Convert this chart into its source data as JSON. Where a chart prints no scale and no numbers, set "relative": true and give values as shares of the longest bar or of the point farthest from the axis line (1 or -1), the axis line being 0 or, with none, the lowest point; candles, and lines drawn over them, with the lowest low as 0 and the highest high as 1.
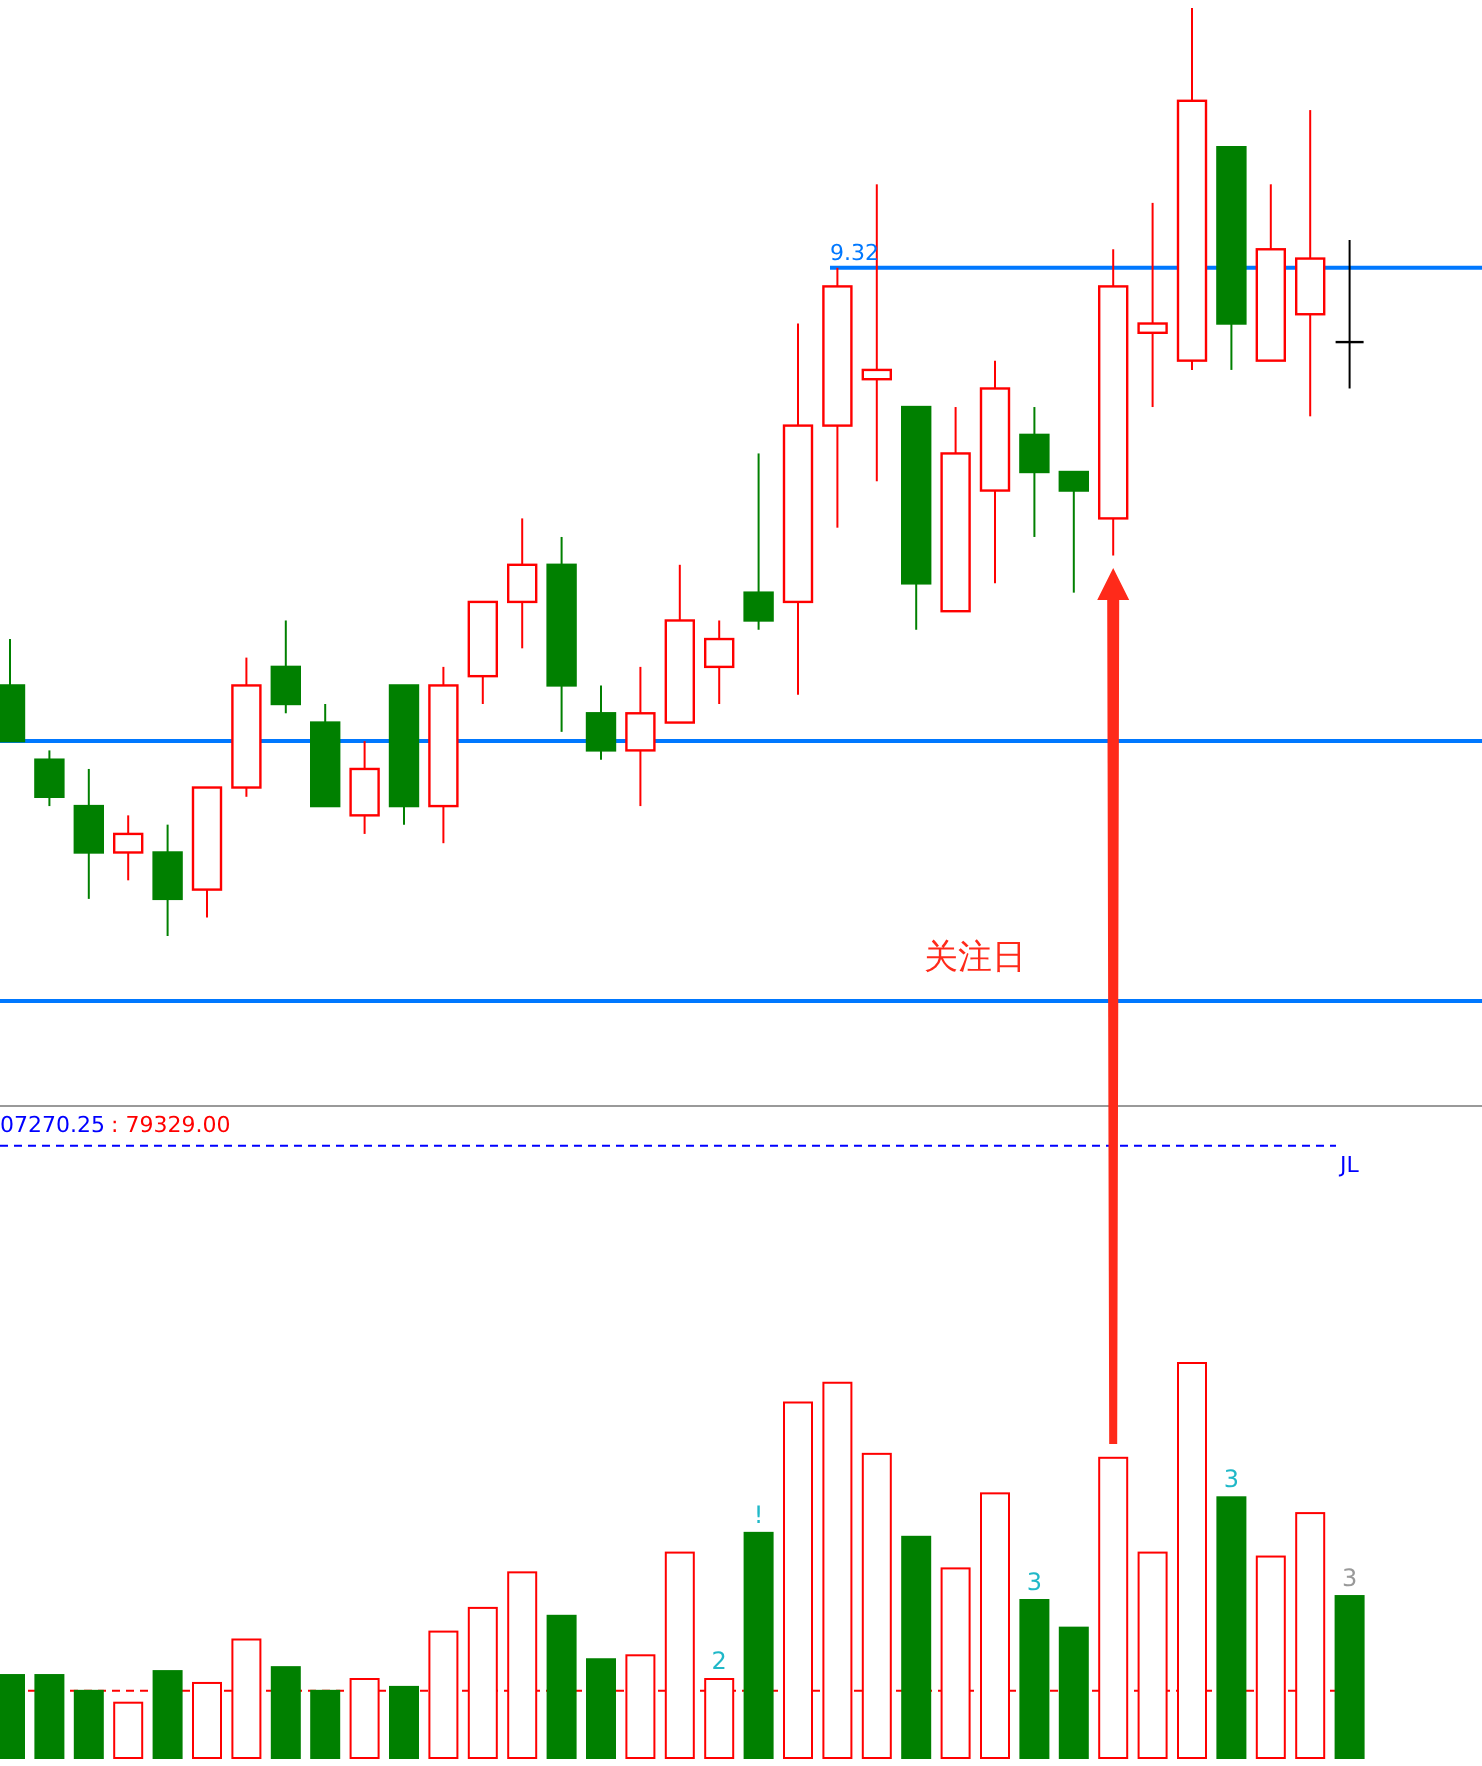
{
  "chart_data": [
    {
      "type": "candlestick",
      "relative": true,
      "categories": [
        null,
        null,
        null,
        null,
        null,
        null,
        null,
        null,
        null,
        null,
        null,
        null,
        null,
        null,
        null,
        null,
        null,
        null,
        null,
        null,
        null,
        null,
        null,
        null,
        null,
        null,
        null,
        null,
        null,
        null,
        null,
        null,
        null,
        null,
        null
      ],
      "ohlc": [
        [
          0.27,
          0.32,
          0.21,
          0.21
        ],
        [
          0.19,
          0.2,
          0.14,
          0.15
        ],
        [
          0.14,
          0.18,
          0.04,
          0.09
        ],
        [
          0.09,
          0.13,
          0.06,
          0.11
        ],
        [
          0.09,
          0.12,
          0,
          0.04
        ],
        [
          0.05,
          0.16,
          0.02,
          0.16
        ],
        [
          0.16,
          0.3,
          0.15,
          0.27
        ],
        [
          0.29,
          0.34,
          0.24,
          0.25
        ],
        [
          0.23,
          0.25,
          0.14,
          0.14
        ],
        [
          0.13,
          0.21,
          0.11,
          0.18
        ],
        [
          0.27,
          0.27,
          0.12,
          0.14
        ],
        [
          0.14,
          0.29,
          0.1,
          0.27
        ],
        [
          0.28,
          0.36,
          0.25,
          0.36
        ],
        [
          0.36,
          0.45,
          0.31,
          0.4
        ],
        [
          0.4,
          0.43,
          0.22,
          0.27
        ],
        [
          0.24,
          0.27,
          0.19,
          0.2
        ],
        [
          0.2,
          0.29,
          0.14,
          0.24
        ],
        [
          0.23,
          0.4,
          0.23,
          0.34
        ],
        [
          0.29,
          0.34,
          0.25,
          0.32
        ],
        [
          0.37,
          0.52,
          0.33,
          0.34
        ],
        [
          0.36,
          0.66,
          0.26,
          0.55
        ],
        [
          0.55,
          0.72,
          0.44,
          0.7
        ],
        [
          0.6,
          0.81,
          0.49,
          0.61
        ],
        [
          0.57,
          0.57,
          0.33,
          0.38
        ],
        [
          0.35,
          0.57,
          0.35,
          0.52
        ],
        [
          0.48,
          0.62,
          0.38,
          0.59
        ],
        [
          0.54,
          0.57,
          0.43,
          0.5
        ],
        [
          0.5,
          0.5,
          0.37,
          0.48
        ],
        [
          0.45,
          0.74,
          0.41,
          0.7
        ],
        [
          0.65,
          0.79,
          0.57,
          0.66
        ],
        [
          0.62,
          1.0,
          0.61,
          0.9
        ],
        [
          0.85,
          0.85,
          0.61,
          0.66
        ],
        [
          0.62,
          0.81,
          0.62,
          0.74
        ],
        [
          0.67,
          0.89,
          0.56,
          0.73
        ],
        [
          0.64,
          0.75,
          0.59,
          0.64
        ]
      ],
      "colors": [
        "#008000",
        "#008000",
        "#008000",
        "#ff0000",
        "#008000",
        "#ff0000",
        "#ff0000",
        "#008000",
        "#008000",
        "#ff0000",
        "#008000",
        "#ff0000",
        "#ff0000",
        "#ff0000",
        "#008000",
        "#008000",
        "#ff0000",
        "#ff0000",
        "#ff0000",
        "#008000",
        "#ff0000",
        "#ff0000",
        "#ff0000",
        "#008000",
        "#ff0000",
        "#ff0000",
        "#008000",
        "#008000",
        "#ff0000",
        "#ff0000",
        "#ff0000",
        "#008000",
        "#ff0000",
        "#ff0000",
        "#000000"
      ],
      "ref_lines": [
        {
          "axis": "y",
          "value": 0.72,
          "color": "#0078ff"
        },
        {
          "axis": "y",
          "value": 0.21,
          "color": "#0078ff"
        },
        {
          "axis": "y",
          "value": -0.07,
          "color": "#0078ff"
        }
      ],
      "annotations": [
        "关注日",
        "9.32"
      ]
    },
    {
      "type": "bar",
      "relative": true,
      "categories": [
        null,
        null,
        null,
        null,
        null,
        null,
        null,
        null,
        null,
        null,
        null,
        null,
        null,
        null,
        null,
        null,
        null,
        null,
        null,
        null,
        null,
        null,
        null,
        null,
        null,
        null,
        null,
        null,
        null,
        null,
        null,
        null,
        null,
        null,
        null
      ],
      "series": [
        {
          "colors": [
            "#008000",
            "#008000",
            "#008000",
            "#ff0000",
            "#008000",
            "#ff0000",
            "#ff0000",
            "#008000",
            "#008000",
            "#ff0000",
            "#008000",
            "#ff0000",
            "#ff0000",
            "#ff0000",
            "#008000",
            "#008000",
            "#ff0000",
            "#ff0000",
            "#ff0000",
            "#008000",
            "#ff0000",
            "#ff0000",
            "#ff0000",
            "#008000",
            "#ff0000",
            "#ff0000",
            "#008000",
            "#008000",
            "#ff0000",
            "#ff0000",
            "#ff0000",
            "#008000",
            "#ff0000",
            "#ff0000",
            "#008000"
          ],
          "values": [
            0.21,
            0.21,
            0.17,
            0.14,
            0.22,
            0.19,
            0.3,
            0.23,
            0.17,
            0.2,
            0.18,
            0.32,
            0.38,
            0.47,
            0.36,
            0.25,
            0.26,
            0.52,
            0.2,
            0.57,
            0.9,
            0.95,
            0.77,
            0.56,
            0.48,
            0.67,
            0.4,
            0.33,
            0.76,
            0.52,
            1.0,
            0.66,
            0.51,
            0.62,
            0.41
          ]
        }
      ],
      "ref_lines": [
        {
          "axis": "y",
          "value": 0.17,
          "color": "#ff0000",
          "line_style": "dashed"
        },
        {
          "axis": "y",
          "value": 1.55,
          "label": "JL",
          "color": "#0000ff",
          "line_style": "dashed"
        }
      ],
      "annotations": [
        "07270.25",
        ": 79329.00",
        "2",
        "!",
        "3",
        "3",
        "3"
      ]
    }
  ]
}
